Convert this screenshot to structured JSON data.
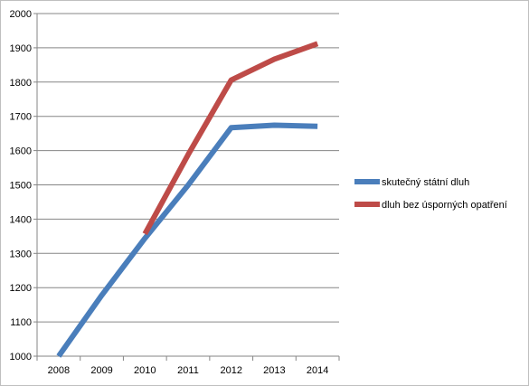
{
  "chart_data": {
    "type": "line",
    "title": "",
    "xlabel": "",
    "ylabel": "",
    "x": [
      "2008",
      "2009",
      "2010",
      "2011",
      "2012",
      "2013",
      "2014"
    ],
    "ylim": [
      1000,
      2000
    ],
    "yticks": [
      1000,
      1100,
      1200,
      1300,
      1400,
      1500,
      1600,
      1700,
      1800,
      1900,
      2000
    ],
    "grid": "horizontal",
    "legend": "right",
    "series": [
      {
        "name": "skutečný státní dluh",
        "color": "#4a7ebb",
        "values": [
          1000,
          1178,
          1344,
          1499,
          1667,
          1674,
          1671
        ]
      },
      {
        "name": "dluh bez úsporných opatření",
        "color": "#be4b48",
        "values": [
          null,
          null,
          1357,
          1588,
          1806,
          1867,
          1912
        ]
      }
    ]
  }
}
